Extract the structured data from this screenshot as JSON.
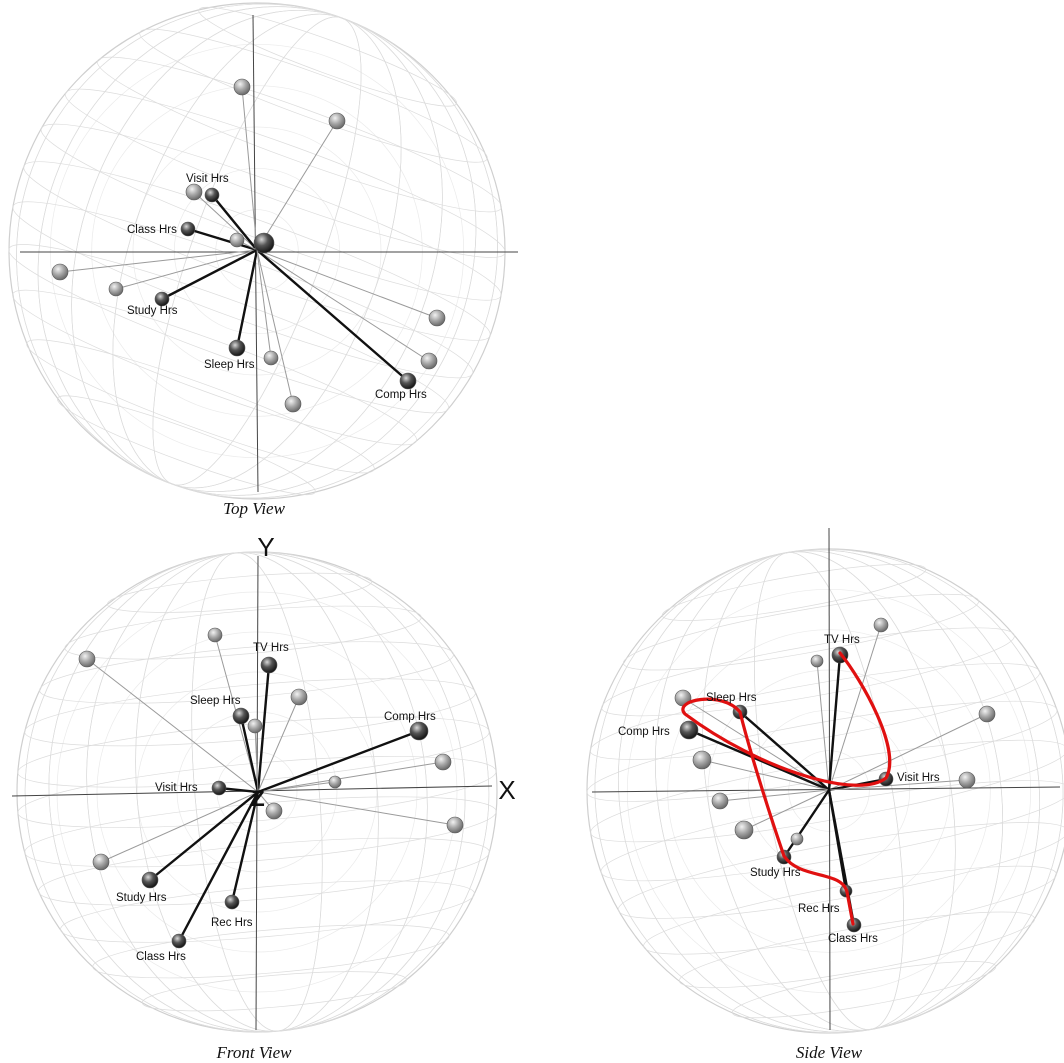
{
  "views": [
    {
      "id": "top",
      "caption": "Top View",
      "axis_labels": {
        "x": "",
        "y": "",
        "z": ""
      },
      "labeled": [
        {
          "name": "Visit Hrs"
        },
        {
          "name": "Class Hrs"
        },
        {
          "name": "Study Hrs"
        },
        {
          "name": "Sleep Hrs"
        },
        {
          "name": "Comp Hrs"
        }
      ]
    },
    {
      "id": "front",
      "caption": "Front View",
      "axis_labels": {
        "x": "X",
        "y": "Y",
        "z": "Z"
      },
      "labeled": [
        {
          "name": "TV Hrs"
        },
        {
          "name": "Sleep Hrs"
        },
        {
          "name": "Comp Hrs"
        },
        {
          "name": "Visit Hrs"
        },
        {
          "name": "Study Hrs"
        },
        {
          "name": "Rec Hrs"
        },
        {
          "name": "Class Hrs"
        }
      ]
    },
    {
      "id": "side",
      "caption": "Side View",
      "axis_labels": {
        "x": "",
        "y": "",
        "z": ""
      },
      "labeled": [
        {
          "name": "TV Hrs"
        },
        {
          "name": "Sleep Hrs"
        },
        {
          "name": "Comp Hrs"
        },
        {
          "name": "Visit Hrs"
        },
        {
          "name": "Study Hrs"
        },
        {
          "name": "Rec Hrs"
        },
        {
          "name": "Class Hrs"
        }
      ],
      "curve_color": "#e01010"
    }
  ],
  "colors": {
    "strong_vector": "#111111",
    "weak_vector": "#9a9a9a",
    "grid": "#dcdcdc",
    "curve": "#e01010"
  }
}
